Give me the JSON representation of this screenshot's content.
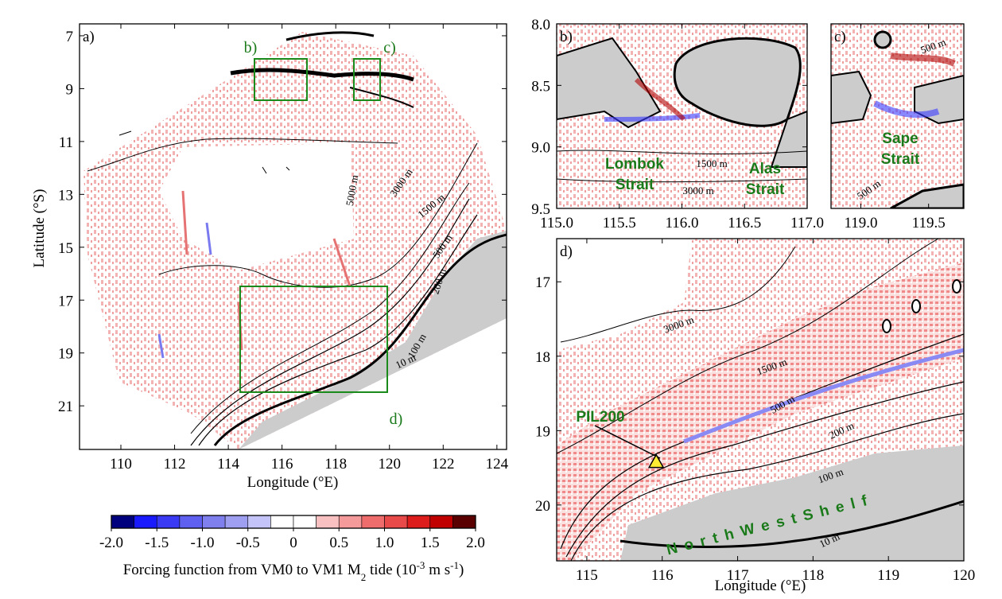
{
  "panels": [
    {
      "label": "a)",
      "xlim": [
        108.46,
        124.36
      ],
      "ylim": [
        6.55,
        22.65
      ],
      "xticks": [
        110,
        112,
        114,
        116,
        118,
        120,
        122,
        124
      ],
      "yticks": [
        7,
        9,
        11,
        13,
        15,
        17,
        19,
        21
      ],
      "xlabel": "Longitude (°E)",
      "ylabel": "Latitude (°S)",
      "contour_labels": [
        "5000 m",
        "3000 m",
        "1500 m",
        "500 m",
        "200 m",
        "100 m",
        "10 m"
      ],
      "box_labels": [
        "b)",
        "c)",
        "d)"
      ]
    },
    {
      "label": "b)",
      "xlim": [
        115,
        117
      ],
      "ylim": [
        8,
        9.5
      ],
      "xticks": [
        {
          "value": 115,
          "label": "115.0"
        },
        115.5,
        {
          "value": 116,
          "label": "116.0"
        },
        116.5,
        {
          "value": 117,
          "label": "117.0"
        }
      ],
      "yticks": [
        {
          "value": 8,
          "label": "8.0"
        },
        8.5,
        {
          "value": 9,
          "label": "9.0"
        },
        9.5
      ],
      "contour_labels": [
        "1500 m",
        "3000 m"
      ],
      "annotations": [
        [
          "Lombok",
          "Strait"
        ],
        [
          "Alas",
          "Strait"
        ]
      ]
    },
    {
      "label": "c)",
      "xlim": [
        118.78,
        119.76
      ],
      "ylim": [
        8,
        9.5
      ],
      "xticks": [
        {
          "value": 119,
          "label": "119.0"
        },
        119.5
      ],
      "contour_labels": [
        "500 m",
        "500 m"
      ],
      "annotations": [
        [
          "Sape",
          "Strait"
        ]
      ]
    },
    {
      "label": "d)",
      "xlim": [
        114.6,
        120
      ],
      "ylim": [
        16.42,
        20.75
      ],
      "xticks": [
        115,
        116,
        117,
        118,
        119,
        120
      ],
      "yticks": [
        17,
        18,
        19,
        20
      ],
      "xlabel": "Longitude (°E)",
      "contour_labels": [
        "3000 m",
        "1500 m",
        "500 m",
        "200 m",
        "100 m",
        "10 m"
      ],
      "station": {
        "label": "PIL200",
        "lon": 115.92,
        "lat": 19.42
      },
      "region_label": "NorthWestShelf"
    }
  ],
  "colorbar": {
    "lim": [
      -2,
      2
    ],
    "colors": [
      "#00007f",
      "#1a1aff",
      "#3a3af5",
      "#6060f0",
      "#7f7fee",
      "#9f9ff2",
      "#c4c4f8",
      "#ffffff",
      "#ffffff",
      "#f8c0c0",
      "#f49a9a",
      "#ee6c6c",
      "#e84a4a",
      "#dd1c1c",
      "#c00000",
      "#5a0000"
    ],
    "ticks": [
      {
        "value": -2,
        "label": "-2.0"
      },
      {
        "value": -1.5,
        "label": "-1.5"
      },
      {
        "value": -1,
        "label": "-1.0"
      },
      {
        "value": -0.5,
        "label": "-0.5"
      },
      0,
      0.5,
      {
        "value": 1,
        "label": "1.0"
      },
      1.5,
      {
        "value": 2,
        "label": "2.0"
      }
    ],
    "label_parts": [
      "Forcing function from VM0 to VM1 M",
      "2",
      " tide (10",
      "-3",
      " m s",
      "-1",
      ")"
    ]
  }
}
